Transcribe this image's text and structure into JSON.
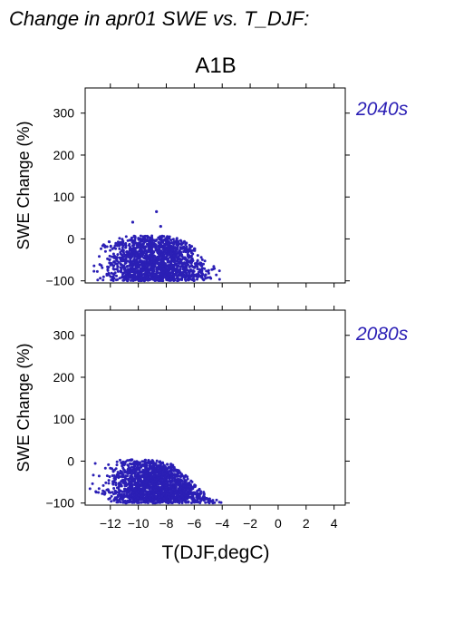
{
  "page": {
    "heading": "Change in apr01 SWE vs. T_DJF:",
    "scenario": "A1B",
    "xlabel": "T(DJF,degC)",
    "ylabel": "SWE Change (%)"
  },
  "colors": {
    "points": "#2b1fb5",
    "period_label": "#2b1fb5",
    "axis": "#000000"
  },
  "chart_data": [
    {
      "type": "scatter",
      "panel": "2040s",
      "title": "",
      "xlabel": "",
      "ylabel": "SWE Change (%)",
      "xlim": [
        -13.8,
        4.8
      ],
      "ylim": [
        -105,
        360
      ],
      "x_ticks": [
        -12,
        -10,
        -8,
        -6,
        -4,
        -2,
        0,
        2,
        4
      ],
      "y_ticks": [
        -100,
        0,
        100,
        200,
        300
      ],
      "point_cloud": {
        "x_range": [
          -13.7,
          -3.8
        ],
        "y_max_by_x": [
          [
            -13.7,
            5
          ],
          [
            -12,
            6
          ],
          [
            -10,
            8
          ],
          [
            -8,
            8
          ],
          [
            -7,
            2
          ],
          [
            -6,
            -20
          ],
          [
            -5,
            -55
          ],
          [
            -4,
            -80
          ]
        ],
        "y_min": -100,
        "outliers": [
          [
            -8.7,
            65
          ],
          [
            -10.4,
            40
          ],
          [
            -8.4,
            30
          ]
        ]
      }
    },
    {
      "type": "scatter",
      "panel": "2080s",
      "title": "",
      "xlabel": "T(DJF,degC)",
      "ylabel": "SWE Change (%)",
      "xlim": [
        -13.8,
        4.8
      ],
      "ylim": [
        -105,
        360
      ],
      "x_ticks": [
        -12,
        -10,
        -8,
        -6,
        -4,
        -2,
        0,
        2,
        4
      ],
      "y_ticks": [
        -100,
        0,
        100,
        200,
        300
      ],
      "point_cloud": {
        "x_range": [
          -13.7,
          -3.8
        ],
        "y_max_by_x": [
          [
            -13.7,
            10
          ],
          [
            -12,
            6
          ],
          [
            -10,
            5
          ],
          [
            -8,
            0
          ],
          [
            -7,
            -20
          ],
          [
            -6,
            -50
          ],
          [
            -5,
            -85
          ],
          [
            -4,
            -98
          ]
        ],
        "y_min": -100,
        "outliers": []
      }
    }
  ]
}
